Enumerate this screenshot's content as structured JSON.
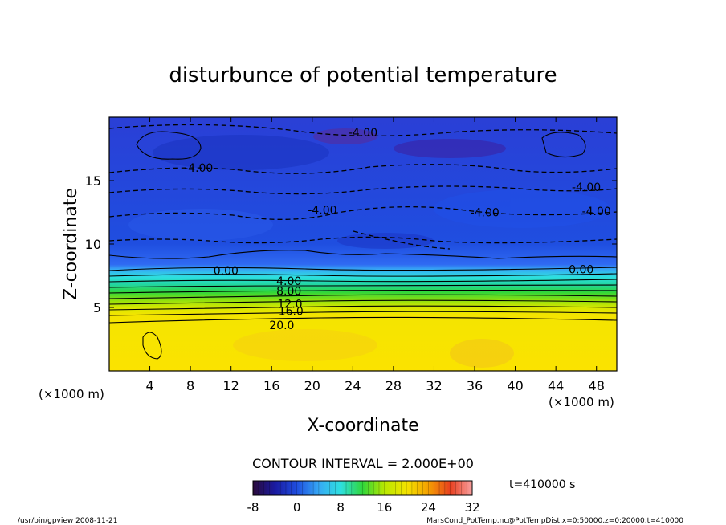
{
  "chart_data": {
    "type": "heatmap",
    "title": "disturbunce of potential temperature",
    "xlabel": "X-coordinate",
    "ylabel": "Z-coordinate",
    "x_unit": "(×1000 m)",
    "xlim": [
      0,
      50
    ],
    "ylim": [
      0,
      20
    ],
    "x_ticks": [
      4,
      8,
      12,
      16,
      20,
      24,
      28,
      32,
      36,
      40,
      44,
      48
    ],
    "y_ticks": [
      5,
      10,
      15
    ],
    "contour_interval_label": "CONTOUR INTERVAL = 2.000E+00",
    "time_label": "t=410000 s",
    "colorbar": {
      "min": -8,
      "max": 32,
      "tick_values": [
        -8,
        0,
        8,
        16,
        24,
        32
      ]
    },
    "contour_labels": [
      {
        "text": "-4.00",
        "x": 25.0,
        "z": 18.8
      },
      {
        "text": "-4.00",
        "x": 8.8,
        "z": 16.0
      },
      {
        "text": "-4.00",
        "x": 47.0,
        "z": 14.5
      },
      {
        "text": "-4.00",
        "x": 21.0,
        "z": 12.7
      },
      {
        "text": "-4.00",
        "x": 37.0,
        "z": 12.5
      },
      {
        "text": "-4.00",
        "x": 48.0,
        "z": 12.6
      },
      {
        "text": "0.00",
        "x": 11.5,
        "z": 7.9
      },
      {
        "text": "0.00",
        "x": 46.5,
        "z": 8.0
      },
      {
        "text": "4.00",
        "x": 17.7,
        "z": 7.1
      },
      {
        "text": "8.00",
        "x": 17.7,
        "z": 6.3
      },
      {
        "text": "12.0",
        "x": 17.8,
        "z": 5.3
      },
      {
        "text": "16.0",
        "x": 17.9,
        "z": 4.7
      },
      {
        "text": "20.0",
        "x": 17.0,
        "z": 3.6
      }
    ],
    "value_regions": [
      {
        "z_range": [
          0,
          3.8
        ],
        "value": "20 to 24"
      },
      {
        "z_range": [
          3.8,
          8.0
        ],
        "value": "0 to 20 (stratified)"
      },
      {
        "z_range": [
          8.0,
          20.0
        ],
        "value": "-8 to 0"
      }
    ],
    "grid": false
  },
  "footer": {
    "left": "/usr/bin/gpview   2008-11-21",
    "right": "MarsCond_PotTemp.nc@PotTempDist,x=0:50000,z=0:20000,t=410000"
  }
}
